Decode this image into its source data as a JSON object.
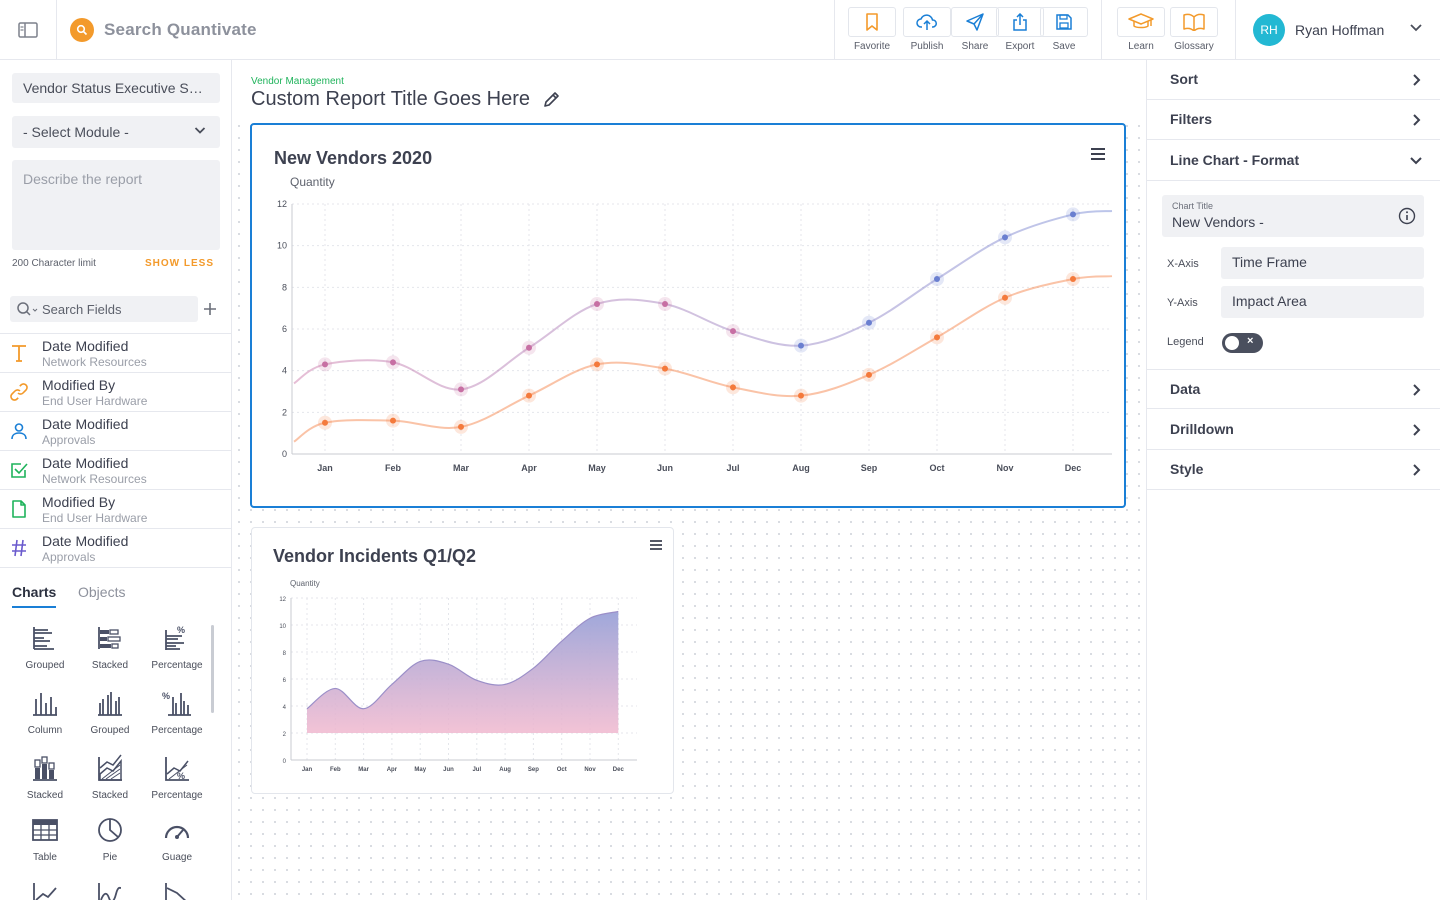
{
  "topbar": {
    "search_placeholder": "Search Quantivate",
    "actions": [
      {
        "label": "Favorite",
        "icon": "bookmark-icon"
      },
      {
        "label": "Publish",
        "icon": "cloud-upload-icon"
      },
      {
        "label": "Share",
        "icon": "send-icon"
      },
      {
        "label": "Export",
        "icon": "export-icon"
      },
      {
        "label": "Save",
        "icon": "floppy-disk-icon"
      }
    ],
    "help_actions": [
      {
        "label": "Learn",
        "icon": "graduation-cap-icon"
      },
      {
        "label": "Glossary",
        "icon": "open-book-icon"
      }
    ],
    "user": {
      "initials": "RH",
      "name": "Ryan Hoffman"
    }
  },
  "left_panel": {
    "report_name": "Vendor Status Executive Summary",
    "module_select": "- Select Module -",
    "description_placeholder": "Describe the report",
    "char_limit": "200 Character limit",
    "show_less": "SHOW LESS",
    "search_fields_placeholder": "Search Fields",
    "fields": [
      {
        "name": "Date Modified",
        "source": "Network Resources",
        "icon": "text-type-icon",
        "color": "#f39a2b"
      },
      {
        "name": "Modified By",
        "source": "End User Hardware",
        "icon": "link-icon",
        "color": "#f39a2b"
      },
      {
        "name": "Date Modified",
        "source": "Approvals",
        "icon": "user-icon",
        "color": "#1a7fd6"
      },
      {
        "name": "Date Modified",
        "source": "Network Resources",
        "icon": "checkbox-icon",
        "color": "#1fb35b"
      },
      {
        "name": "Modified By",
        "source": "End User Hardware",
        "icon": "document-icon",
        "color": "#1fb35b"
      },
      {
        "name": "Date Modified",
        "source": "Approvals",
        "icon": "hash-icon",
        "color": "#6a5acd"
      }
    ],
    "tabs": [
      "Charts",
      "Objects"
    ],
    "chart_types": [
      {
        "label": "Grouped",
        "icon": "bar-grouped-horizontal-icon"
      },
      {
        "label": "Stacked",
        "icon": "bar-stacked-horizontal-icon"
      },
      {
        "label": "Percentage",
        "icon": "bar-percentage-horizontal-icon"
      },
      {
        "label": "Column",
        "icon": "column-icon"
      },
      {
        "label": "Grouped",
        "icon": "column-grouped-icon"
      },
      {
        "label": "Percentage",
        "icon": "column-percentage-icon"
      },
      {
        "label": "Stacked",
        "icon": "column-stacked-icon"
      },
      {
        "label": "Stacked",
        "icon": "area-stacked-icon"
      },
      {
        "label": "Percentage",
        "icon": "area-percentage-icon"
      },
      {
        "label": "Table",
        "icon": "table-icon"
      },
      {
        "label": "Pie",
        "icon": "pie-icon"
      },
      {
        "label": "Guage",
        "icon": "gauge-icon"
      }
    ]
  },
  "canvas": {
    "module": "Vendor Management",
    "report_title": "Custom Report Title Goes Here"
  },
  "chart_data": [
    {
      "type": "line",
      "title": "New Vendors 2020",
      "ylabel": "Quantity",
      "xlabel": "",
      "ylim": [
        0,
        12
      ],
      "yticks": [
        0,
        2,
        4,
        6,
        8,
        10,
        12
      ],
      "categories": [
        "Jan",
        "Feb",
        "Mar",
        "Apr",
        "May",
        "Jun",
        "Jul",
        "Aug",
        "Sep",
        "Oct",
        "Nov",
        "Dec"
      ],
      "series": [
        {
          "color": "#c76fa3",
          "color_end": "#6a7fd0",
          "values": [
            4.3,
            4.4,
            3.1,
            5.1,
            7.2,
            7.2,
            5.9,
            5.2,
            6.3,
            8.4,
            10.4,
            11.5
          ]
        },
        {
          "color": "#f47a3c",
          "values": [
            1.5,
            1.6,
            1.3,
            2.8,
            4.3,
            4.1,
            3.2,
            2.8,
            3.8,
            5.6,
            7.5,
            8.4
          ]
        }
      ],
      "grid": true,
      "legend": "none"
    },
    {
      "type": "area",
      "title": "Vendor Incidents Q1/Q2",
      "ylabel": "Quantity",
      "xlabel": "",
      "ylim": [
        0,
        12
      ],
      "yticks": [
        0,
        2,
        4,
        6,
        8,
        10,
        12
      ],
      "categories": [
        "Jan",
        "Feb",
        "Mar",
        "Apr",
        "May",
        "Jun",
        "Jul",
        "Aug",
        "Sep",
        "Oct",
        "Nov",
        "Dec"
      ],
      "series": [
        {
          "color": "#9aa3d8",
          "color_end": "#f0b8cf",
          "values": [
            3.8,
            5.3,
            3.8,
            5.6,
            7.3,
            7.1,
            5.9,
            5.6,
            6.8,
            8.8,
            10.5,
            11.0
          ]
        }
      ],
      "grid": true,
      "legend": "none"
    }
  ],
  "right_panel": {
    "sections_top": [
      "Sort",
      "Filters"
    ],
    "format_section": "Line Chart - Format",
    "chart_title_label": "Chart Title",
    "chart_title_value": "New Vendors -",
    "x_axis_label": "X-Axis",
    "x_axis_value": "Time Frame",
    "y_axis_label": "Y-Axis",
    "y_axis_value": "Impact Area",
    "legend_label": "Legend",
    "legend_on": false,
    "sections_bottom": [
      "Data",
      "Drilldown",
      "Style"
    ]
  }
}
